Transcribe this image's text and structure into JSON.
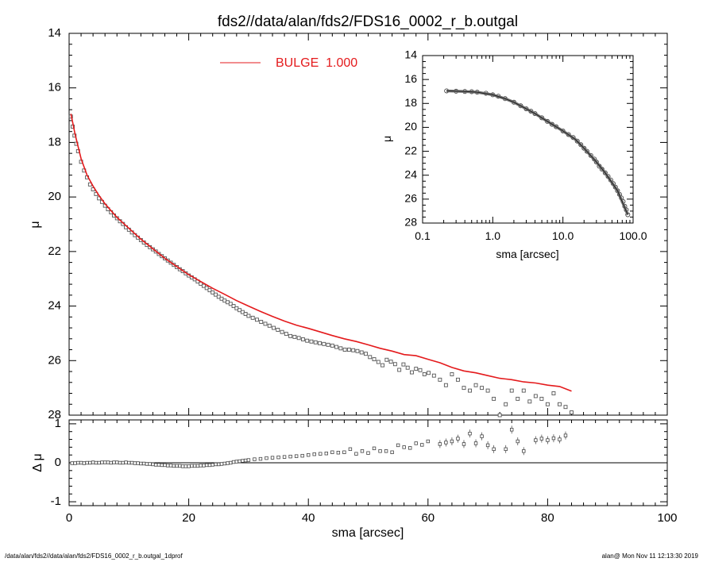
{
  "title": "fds2//data/alan/fds2/FDS16_0002_r_b.outgal",
  "footer": {
    "left": "/data/alan/fds2//data/alan/fds2/FDS16_0002_r_b.outgal_1dprof",
    "right": "alan@  Mon Nov 11 12:13:30 2019"
  },
  "colors": {
    "model": "#e41a1c",
    "data": "#000000",
    "axis": "#000000"
  },
  "chart_data": [
    {
      "name": "main-profile",
      "type": "scatter",
      "xlabel": "",
      "ylabel": "μ",
      "xlim": [
        0,
        100
      ],
      "ylim": [
        28,
        14
      ],
      "y_inverted": true,
      "xticks": [
        0,
        20,
        40,
        60,
        80,
        100
      ],
      "yticks": [
        14,
        16,
        18,
        20,
        22,
        24,
        26,
        28
      ],
      "legend": {
        "label": "BULGE  1.000",
        "color": "#e41a1c",
        "placement": "top-center"
      },
      "series": [
        {
          "name": "data",
          "style": "square-markers",
          "x": [
            0.3,
            0.6,
            0.9,
            1.2,
            1.5,
            2,
            2.5,
            3,
            3.5,
            4,
            4.5,
            5,
            5.5,
            6,
            6.5,
            7,
            7.5,
            8,
            8.5,
            9,
            9.5,
            10,
            10.5,
            11,
            11.5,
            12,
            12.5,
            13,
            13.5,
            14,
            14.5,
            15,
            15.5,
            16,
            16.5,
            17,
            17.5,
            18,
            18.5,
            19,
            19.5,
            20,
            20.5,
            21,
            21.5,
            22,
            22.5,
            23,
            23.5,
            24,
            24.5,
            25,
            25.5,
            26,
            26.5,
            27,
            27.5,
            28,
            28.5,
            29,
            29.5,
            30,
            30.7,
            31.4,
            32.1,
            32.8,
            33.5,
            34.2,
            34.9,
            35.6,
            36.3,
            37,
            37.7,
            38.4,
            39.1,
            39.8,
            40.5,
            41.2,
            41.9,
            42.6,
            43.3,
            44,
            44.7,
            45.4,
            46.1,
            46.8,
            47.5,
            48.2,
            48.9,
            49.6,
            50.3,
            51,
            51.7,
            52.4,
            53.1,
            53.8,
            54.5,
            55.2,
            55.9,
            56.6,
            57.3,
            58,
            58.7,
            59.4,
            60.1,
            61,
            62,
            63,
            64,
            65,
            66,
            67,
            68,
            69,
            70,
            71,
            72,
            73,
            74,
            75,
            76,
            77,
            78,
            79,
            80,
            81,
            82,
            83,
            84
          ],
          "y": [
            17.05,
            17.42,
            17.75,
            18.05,
            18.32,
            18.71,
            19.03,
            19.28,
            19.54,
            19.72,
            19.89,
            20.05,
            20.18,
            20.32,
            20.45,
            20.56,
            20.68,
            20.78,
            20.89,
            20.99,
            21.11,
            21.2,
            21.3,
            21.4,
            21.49,
            21.58,
            21.67,
            21.76,
            21.84,
            21.92,
            22.0,
            22.09,
            22.17,
            22.25,
            22.33,
            22.41,
            22.49,
            22.57,
            22.65,
            22.72,
            22.8,
            22.88,
            22.95,
            23.02,
            23.1,
            23.18,
            23.26,
            23.34,
            23.42,
            23.5,
            23.58,
            23.66,
            23.73,
            23.8,
            23.86,
            23.92,
            24.0,
            24.08,
            24.15,
            24.22,
            24.29,
            24.36,
            24.43,
            24.5,
            24.58,
            24.65,
            24.72,
            24.8,
            24.87,
            24.95,
            25.02,
            25.1,
            25.13,
            25.17,
            25.22,
            25.27,
            25.3,
            25.33,
            25.36,
            25.39,
            25.42,
            25.45,
            25.5,
            25.55,
            25.6,
            25.6,
            25.62,
            25.65,
            25.7,
            25.75,
            25.87,
            25.95,
            26.05,
            26.17,
            25.97,
            26.04,
            26.13,
            26.34,
            26.14,
            26.26,
            26.43,
            26.3,
            26.35,
            26.5,
            26.45,
            26.55,
            26.7,
            26.9,
            26.5,
            26.7,
            27.0,
            27.1,
            26.9,
            27.0,
            27.1,
            27.4,
            28.0,
            27.6,
            27.1,
            27.4,
            27.1,
            27.5,
            27.3,
            27.4,
            27.6,
            27.2,
            27.6,
            27.7,
            27.9
          ]
        },
        {
          "name": "BULGE  1.000",
          "style": "line",
          "x": [
            0.3,
            1,
            2,
            3,
            4,
            5,
            6,
            7,
            8,
            9,
            10,
            12,
            14,
            16,
            18,
            20,
            22,
            24,
            26,
            28,
            30,
            32,
            34,
            36,
            38,
            40,
            42,
            44,
            46,
            48,
            50,
            52,
            54,
            56,
            58,
            60,
            62,
            64,
            66,
            68,
            70,
            72,
            74,
            76,
            78,
            80,
            82,
            84
          ],
          "y": [
            16.95,
            17.7,
            18.6,
            19.2,
            19.6,
            19.95,
            20.25,
            20.5,
            20.75,
            20.95,
            21.15,
            21.55,
            21.9,
            22.25,
            22.55,
            22.85,
            23.1,
            23.35,
            23.57,
            23.8,
            24.0,
            24.2,
            24.38,
            24.55,
            24.7,
            24.82,
            24.95,
            25.08,
            25.2,
            25.3,
            25.42,
            25.55,
            25.65,
            25.78,
            25.82,
            25.95,
            26.08,
            26.25,
            26.38,
            26.45,
            26.55,
            26.65,
            26.7,
            26.78,
            26.82,
            26.9,
            26.95,
            27.12
          ]
        }
      ]
    },
    {
      "name": "residuals",
      "type": "scatter",
      "xlabel": "sma [arcsec]",
      "ylabel": "Δ μ",
      "xlim": [
        0,
        100
      ],
      "ylim": [
        -1.1,
        1.1
      ],
      "xticks": [
        0,
        20,
        40,
        60,
        80,
        100
      ],
      "yticks": [
        -1,
        0,
        1
      ],
      "zero_line": true,
      "series": [
        {
          "name": "residual",
          "style": "square-markers-with-errorbars",
          "x": [
            0.5,
            1,
            1.5,
            2,
            2.5,
            3,
            3.5,
            4,
            4.5,
            5,
            5.5,
            6,
            6.5,
            7,
            7.5,
            8,
            8.5,
            9,
            9.5,
            10,
            10.5,
            11,
            11.5,
            12,
            12.5,
            13,
            13.5,
            14,
            14.5,
            15,
            15.5,
            16,
            16.5,
            17,
            17.5,
            18,
            18.5,
            19,
            19.5,
            20,
            20.5,
            21,
            21.5,
            22,
            22.5,
            23,
            23.5,
            24,
            24.5,
            25,
            25.5,
            26,
            26.5,
            27,
            27.5,
            28,
            28.5,
            29,
            29.5,
            30,
            31,
            32,
            33,
            34,
            35,
            36,
            37,
            38,
            39,
            40,
            41,
            42,
            43,
            44,
            45,
            46,
            47,
            48,
            49,
            50,
            51,
            52,
            53,
            54,
            55,
            56,
            57,
            58,
            59,
            60,
            62,
            63,
            64,
            65,
            66,
            67,
            68,
            69,
            70,
            71,
            73,
            74,
            75,
            76,
            78,
            79,
            80,
            81,
            82,
            83
          ],
          "y": [
            -0.01,
            -0.01,
            0.0,
            0.0,
            -0.01,
            0.0,
            0.0,
            0.01,
            0.0,
            0.0,
            0.01,
            0.01,
            0.01,
            0.0,
            0.01,
            0.01,
            0.0,
            0.0,
            0.01,
            0.0,
            0.0,
            -0.01,
            -0.01,
            -0.02,
            -0.02,
            -0.03,
            -0.03,
            -0.04,
            -0.05,
            -0.05,
            -0.06,
            -0.06,
            -0.07,
            -0.07,
            -0.08,
            -0.08,
            -0.08,
            -0.09,
            -0.09,
            -0.09,
            -0.08,
            -0.08,
            -0.08,
            -0.07,
            -0.07,
            -0.06,
            -0.06,
            -0.05,
            -0.04,
            -0.04,
            -0.03,
            -0.02,
            -0.01,
            0.0,
            0.02,
            0.03,
            0.04,
            0.05,
            0.06,
            0.07,
            0.09,
            0.1,
            0.12,
            0.13,
            0.14,
            0.15,
            0.16,
            0.17,
            0.18,
            0.2,
            0.22,
            0.23,
            0.24,
            0.27,
            0.26,
            0.27,
            0.35,
            0.23,
            0.3,
            0.25,
            0.37,
            0.3,
            0.3,
            0.27,
            0.45,
            0.4,
            0.38,
            0.5,
            0.46,
            0.55,
            0.48,
            0.52,
            0.55,
            0.62,
            0.48,
            0.75,
            0.5,
            0.68,
            0.45,
            0.35,
            0.35,
            0.85,
            0.55,
            0.3,
            0.58,
            0.62,
            0.58,
            0.63,
            0.6,
            0.7
          ]
        }
      ]
    },
    {
      "name": "inset-log-profile",
      "type": "scatter",
      "xlabel": "sma [arcsec]",
      "ylabel": "μ",
      "x_scale": "log",
      "xlim": [
        0.1,
        100
      ],
      "ylim": [
        28,
        14
      ],
      "y_inverted": true,
      "xticks": [
        0.1,
        1.0,
        10.0,
        100.0
      ],
      "xtick_labels": [
        "0.1",
        "1.0",
        "10.0",
        "100.0"
      ],
      "yticks": [
        14,
        16,
        18,
        20,
        22,
        24,
        26,
        28
      ],
      "series": [
        {
          "name": "data",
          "style": "open-circles",
          "x": [
            0.22,
            0.3,
            0.4,
            0.5,
            0.6,
            0.8,
            1.0,
            1.2,
            1.5,
            2.0,
            2.5,
            3.0,
            3.5,
            4,
            5,
            6,
            7,
            8,
            10,
            12,
            14,
            16,
            18,
            20,
            22,
            25,
            28,
            30,
            33,
            36,
            40,
            44,
            48,
            52,
            56,
            60,
            64,
            68,
            72,
            76,
            80,
            84
          ],
          "y": [
            16.95,
            16.98,
            17.0,
            17.02,
            17.06,
            17.15,
            17.28,
            17.4,
            17.6,
            17.9,
            18.2,
            18.45,
            18.65,
            18.85,
            19.2,
            19.5,
            19.75,
            19.95,
            20.3,
            20.6,
            20.85,
            21.15,
            21.45,
            21.75,
            22.0,
            22.35,
            22.65,
            22.9,
            23.25,
            23.5,
            23.8,
            24.1,
            24.4,
            24.7,
            25.0,
            25.3,
            25.6,
            25.9,
            26.2,
            26.6,
            26.9,
            27.3
          ]
        },
        {
          "name": "model",
          "style": "line",
          "x": [
            0.22,
            0.4,
            0.6,
            1.0,
            1.5,
            2,
            3,
            4,
            6,
            8,
            10,
            15,
            20,
            30,
            40,
            60,
            84
          ],
          "y": [
            16.95,
            17.0,
            17.06,
            17.28,
            17.6,
            17.9,
            18.45,
            18.85,
            19.5,
            19.95,
            20.3,
            21.0,
            21.75,
            22.9,
            23.8,
            25.3,
            27.3
          ]
        }
      ]
    }
  ]
}
